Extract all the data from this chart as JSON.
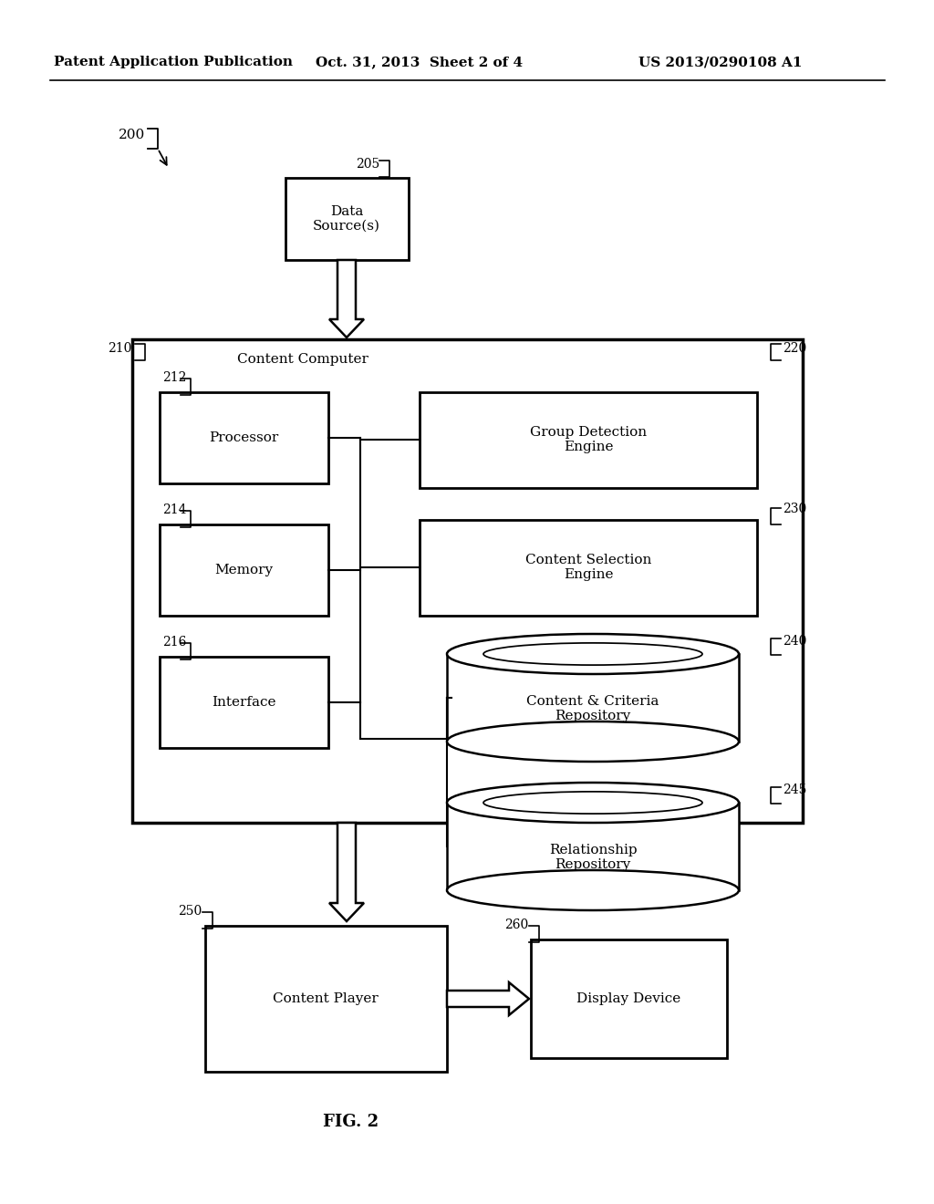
{
  "bg_color": "#ffffff",
  "header_left": "Patent Application Publication",
  "header_mid": "Oct. 31, 2013  Sheet 2 of 4",
  "header_right": "US 2013/0290108 A1",
  "fig_label": "FIG. 2",
  "label_200": "200",
  "label_205": "205",
  "label_210": "210",
  "label_212": "212",
  "label_214": "214",
  "label_216": "216",
  "label_220": "220",
  "label_230": "230",
  "label_240": "240",
  "label_245": "245",
  "label_250": "250",
  "label_260": "260",
  "text_data_source": "Data\nSource(s)",
  "text_content_computer": "Content Computer",
  "text_processor": "Processor",
  "text_memory": "Memory",
  "text_interface": "Interface",
  "text_group_detection": "Group Detection\nEngine",
  "text_content_selection": "Content Selection\nEngine",
  "text_content_criteria": "Content & Criteria\nRepository",
  "text_relationship": "Relationship\nRepository",
  "text_content_player": "Content Player",
  "text_display_device": "Display Device"
}
